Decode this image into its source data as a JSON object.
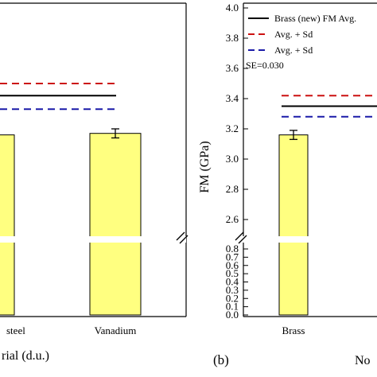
{
  "chart_data": [
    {
      "type": "bar",
      "panel_label": "",
      "categories": [
        "steel",
        "Vanadium"
      ],
      "values": [
        3.16,
        3.17
      ],
      "error_bars": [
        null,
        0.03
      ],
      "reference_lines": [
        {
          "name": "",
          "value": 3.42,
          "style": "solid",
          "color": "#000000"
        },
        {
          "name": "",
          "value": 3.5,
          "style": "dashed",
          "color": "#cc1111"
        },
        {
          "name": "",
          "value": 3.33,
          "style": "dashed",
          "color": "#1a1aa8"
        }
      ],
      "xlabel": "rial (d.u.)",
      "ylabel": "",
      "y_axis_break": true,
      "bar_color": "#ffff80"
    },
    {
      "type": "bar",
      "panel_label": "(b)",
      "categories": [
        "Brass"
      ],
      "values": [
        3.16
      ],
      "error_bars": [
        0.03
      ],
      "ylabel": "FM (GPa)",
      "xlabel": "No",
      "ylim_upper": [
        2.5,
        4.0
      ],
      "ylim_lower": [
        0.0,
        0.8
      ],
      "y_axis_break": true,
      "yticks_upper": [
        "2.6",
        "2.8",
        "3.0",
        "3.2",
        "3.4",
        "3.6",
        "3.8",
        "4.0"
      ],
      "yticks_lower": [
        "0.0",
        "0.1",
        "0.2",
        "0.3",
        "0.4",
        "0.5",
        "0.6",
        "0.7",
        "0.8"
      ],
      "reference_lines": [
        {
          "name": "Brass (new) FM Avg.",
          "value": 3.35,
          "style": "solid",
          "color": "#000000"
        },
        {
          "name": "Avg. + Sd",
          "value": 3.42,
          "style": "dashed",
          "color": "#cc1111"
        },
        {
          "name": "Avg. + Sd",
          "value": 3.28,
          "style": "dashed",
          "color": "#1a1aa8"
        }
      ],
      "annotation": "SE=0.030",
      "bar_color": "#ffff80"
    }
  ]
}
